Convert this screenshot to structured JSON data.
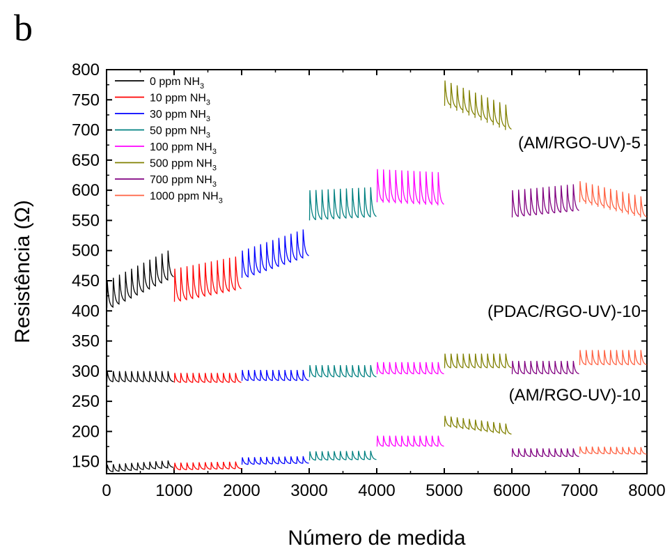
{
  "panel_label": "b",
  "chart_data": {
    "type": "line",
    "xlabel": "Número de medida",
    "ylabel": "Resistência (Ω)",
    "xlim": [
      0,
      8000
    ],
    "ylim": [
      130,
      800
    ],
    "x_ticks": [
      0,
      1000,
      2000,
      3000,
      4000,
      5000,
      6000,
      7000,
      8000
    ],
    "x_tick_labels": [
      "0",
      "1000",
      "2000",
      "3000",
      "4000",
      "5000",
      "6000",
      "7000",
      "8000"
    ],
    "y_ticks": [
      150,
      200,
      250,
      300,
      350,
      400,
      450,
      500,
      550,
      600,
      650,
      700,
      750,
      800
    ],
    "y_tick_labels": [
      "150",
      "200",
      "250",
      "300",
      "350",
      "400",
      "450",
      "500",
      "550",
      "600",
      "650",
      "700",
      "750",
      "800"
    ],
    "grid": false,
    "legend_position": "top-left",
    "legend": [
      {
        "text": "0 ppm NH",
        "sub": "3",
        "color": "#000000"
      },
      {
        "text": "10 ppm NH",
        "sub": "3",
        "color": "#ff0000"
      },
      {
        "text": "30 ppm NH",
        "sub": "3",
        "color": "#0000ff"
      },
      {
        "text": "50 ppm NH",
        "sub": "3",
        "color": "#008080"
      },
      {
        "text": "100 ppm NH",
        "sub": "3",
        "color": "#ff00ff"
      },
      {
        "text": "500 ppm NH",
        "sub": "3",
        "color": "#808000"
      },
      {
        "text": "700 ppm NH",
        "sub": "3",
        "color": "#800080"
      },
      {
        "text": "1000 ppm NH",
        "sub": "3",
        "color": "#ff6040"
      }
    ],
    "annotations": [
      "(AM/RGO-UV)-5",
      "(PDAC/RGO-UV)-10",
      "(AM/RGO-UV)-10"
    ],
    "segments": [
      {
        "x": [
          0,
          1000
        ],
        "color": "#000000"
      },
      {
        "x": [
          1000,
          2000
        ],
        "color": "#ff0000"
      },
      {
        "x": [
          2000,
          3000
        ],
        "color": "#0000ff"
      },
      {
        "x": [
          3000,
          4000
        ],
        "color": "#008080"
      },
      {
        "x": [
          4000,
          5000
        ],
        "color": "#ff00ff"
      },
      {
        "x": [
          5000,
          6000
        ],
        "color": "#808000"
      },
      {
        "x": [
          6000,
          7000
        ],
        "color": "#800080"
      },
      {
        "x": [
          7000,
          8000
        ],
        "color": "#ff6040"
      }
    ],
    "series": [
      {
        "name": "(AM/RGO-UV)-5",
        "cycles": 11,
        "amplitude": [
          45,
          55,
          45,
          50,
          55,
          42,
          45,
          35
        ],
        "base_start": [
          405,
          415,
          455,
          550,
          580,
          740,
          555,
          580
        ],
        "base_end": [
          455,
          435,
          490,
          555,
          575,
          700,
          565,
          555
        ]
      },
      {
        "name": "(PDAC/RGO-UV)-10",
        "cycles": 11,
        "amplitude": [
          18,
          16,
          18,
          20,
          20,
          24,
          22,
          25
        ],
        "base_start": [
          282,
          281,
          284,
          290,
          295,
          305,
          295,
          310
        ],
        "base_end": [
          282,
          281,
          284,
          290,
          295,
          305,
          295,
          310
        ]
      },
      {
        "name": "(AM/RGO-UV)-10",
        "cycles": 11,
        "amplitude": [
          12,
          12,
          12,
          15,
          18,
          18,
          14,
          12
        ],
        "base_start": [
          133,
          136,
          145,
          152,
          175,
          208,
          158,
          163
        ],
        "base_end": [
          140,
          138,
          147,
          153,
          175,
          195,
          158,
          162
        ]
      }
    ]
  }
}
